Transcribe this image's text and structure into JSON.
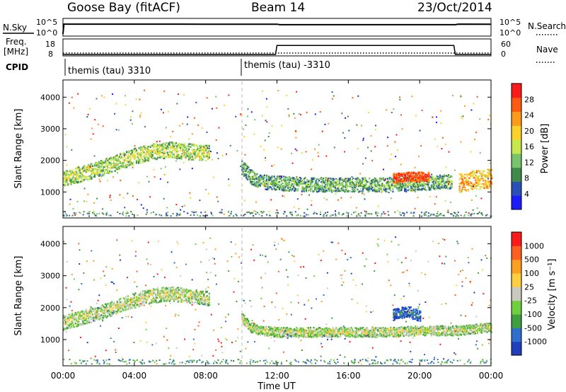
{
  "header": {
    "station": "Goose Bay (fitACF)",
    "beam": "Beam 14",
    "date": "23/Oct/2014"
  },
  "colors": {
    "power_scale": [
      "#1c1cff",
      "#2a50b8",
      "#3e8a4a",
      "#79c46a",
      "#c6e84a",
      "#ffd12a",
      "#ff9a1a",
      "#ff5a10",
      "#ff1a1a"
    ],
    "velocity_scale": [
      "#1f3fbf",
      "#2f6fcf",
      "#3f9f3f",
      "#6fcf3f",
      "#c9c9c0",
      "#ffcf3f",
      "#ff9f1f",
      "#ff5f1f",
      "#ff1a1a"
    ],
    "gap_line": "#bbbbbb"
  },
  "chart_data": [
    {
      "type": "line",
      "panel": "noise",
      "series": [
        {
          "name": "N.Sky",
          "style": "solid",
          "x": [
            "00:00",
            "00:30",
            "04:00",
            "08:00",
            "12:00",
            "12:10",
            "16:00",
            "20:00",
            "22:00",
            "22:10",
            "24:00"
          ],
          "values": [
            1,
            22000,
            22000,
            21000,
            20000,
            12000,
            12000,
            12000,
            12000,
            22000,
            21000
          ]
        },
        {
          "name": "N.Search",
          "style": "dotted",
          "x": [],
          "values": []
        }
      ],
      "ylabel_left": "N.Sky",
      "ylabel_right": "N.Search",
      "left_ticks": [
        "10^5",
        "10^0"
      ],
      "right_ticks": [
        "10^5",
        "10^0"
      ]
    },
    {
      "type": "line",
      "panel": "frequency",
      "series": [
        {
          "name": "Nave",
          "style": "dotted",
          "x": [
            "00:00",
            "12:00",
            "12:00",
            "22:00",
            "22:00",
            "24:00"
          ],
          "values": [
            8,
            8,
            8,
            8,
            8,
            8
          ]
        },
        {
          "name": "Freq",
          "style": "solid",
          "x": [
            "00:00",
            "11:55",
            "12:00",
            "21:55",
            "22:00",
            "24:00"
          ],
          "values": [
            8,
            8,
            16,
            16,
            8,
            8
          ]
        }
      ],
      "ylabel_left": "Freq.",
      "ylabel_left_unit": "[MHz]",
      "ylabel_right": "Nave",
      "left_ticks": [
        "18",
        "8"
      ],
      "right_ticks": [
        "60",
        "0"
      ]
    },
    {
      "type": "table",
      "panel": "cpid",
      "label": "CPID",
      "segments": [
        {
          "start": "00:00",
          "label": "themis (tau) 3310"
        },
        {
          "start": "10:00",
          "label": "themis (tau) -3310"
        }
      ]
    },
    {
      "type": "heatmap",
      "panel": "power",
      "ylabel": "Slant Range [km]",
      "yticks": [
        1000,
        2000,
        3000,
        4000
      ],
      "ylim": [
        200,
        4500
      ],
      "colorbar_label": "Power [dB]",
      "colorbar_ticks": [
        4,
        8,
        12,
        16,
        20,
        24,
        28
      ],
      "bands": [
        {
          "x": [
            0.0,
            2.0,
            4.0,
            5.0,
            6.0,
            7.0,
            8.2
          ],
          "y": [
            1450,
            1750,
            2150,
            2300,
            2350,
            2300,
            2250
          ],
          "width": 500,
          "level": 4
        },
        {
          "x": [
            10.0,
            10.5,
            11.0,
            12.0,
            14.0,
            16.0,
            18.0,
            20.0,
            21.8
          ],
          "y": [
            1800,
            1500,
            1350,
            1300,
            1250,
            1250,
            1250,
            1300,
            1350
          ],
          "width": 450,
          "level": 3
        },
        {
          "x": [
            18.5,
            19.5,
            20.5
          ],
          "y": [
            1450,
            1500,
            1500
          ],
          "width": 300,
          "level": 8
        },
        {
          "x": [
            22.2,
            23.0,
            24.0
          ],
          "y": [
            1300,
            1400,
            1450
          ],
          "width": 600,
          "level": 6
        }
      ]
    },
    {
      "type": "heatmap",
      "panel": "velocity",
      "ylabel": "Slant Range [km]",
      "yticks": [
        1000,
        2000,
        3000,
        4000
      ],
      "ylim": [
        200,
        4500
      ],
      "xlabel": "Time UT",
      "xticks": [
        "00:00",
        "04:00",
        "08:00",
        "12:00",
        "16:00",
        "20:00",
        "00:00"
      ],
      "colorbar_label": "Velocity [m s⁻¹]",
      "colorbar_ticks": [
        1000,
        500,
        100,
        25,
        -25,
        -100,
        -500,
        -1000
      ],
      "bands": [
        {
          "x": [
            0.0,
            2.0,
            4.0,
            5.0,
            6.0,
            7.0,
            8.2
          ],
          "y": [
            1550,
            1850,
            2250,
            2400,
            2450,
            2400,
            2300
          ],
          "width": 450,
          "level": 4
        },
        {
          "x": [
            10.0,
            10.5,
            11.0,
            12.0,
            14.0,
            16.0,
            18.0,
            20.0,
            22.0,
            24.0
          ],
          "y": [
            1700,
            1400,
            1300,
            1250,
            1250,
            1250,
            1250,
            1300,
            1300,
            1400
          ],
          "width": 300,
          "level": 4
        },
        {
          "x": [
            18.5,
            19.3,
            20.0
          ],
          "y": [
            1800,
            1900,
            1750
          ],
          "width": 350,
          "level": 1
        }
      ]
    }
  ]
}
